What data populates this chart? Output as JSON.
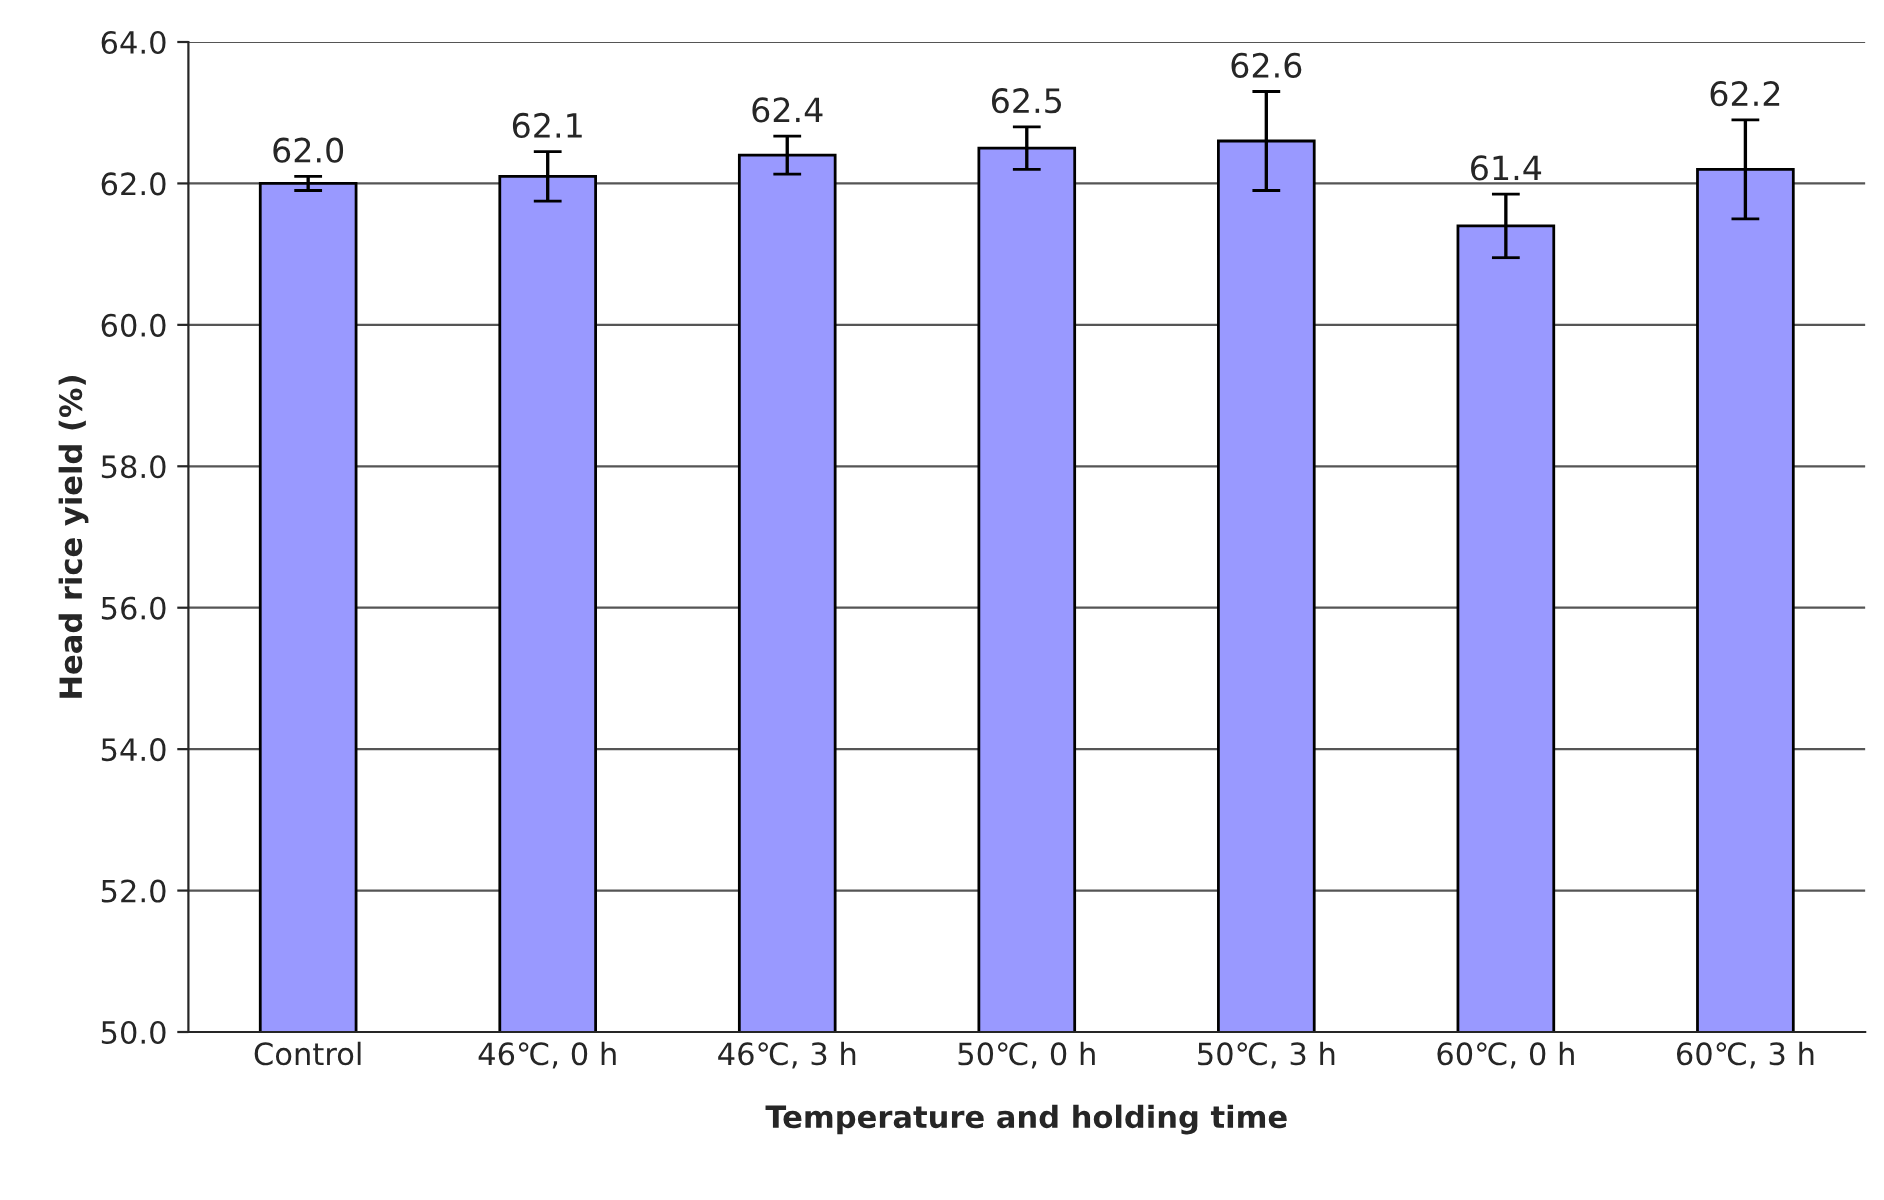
{
  "chart_data": {
    "type": "bar",
    "xlabel": "Temperature and holding time",
    "ylabel": "Head rice yield (%)",
    "categories": [
      "Control",
      "46℃, 0 h",
      "46℃, 3 h",
      "50℃, 0 h",
      "50℃, 3 h",
      "60℃, 0 h",
      "60℃, 3 h"
    ],
    "values": [
      62.0,
      62.1,
      62.4,
      62.5,
      62.6,
      61.4,
      62.2
    ],
    "errors": [
      0.1,
      0.35,
      0.27,
      0.3,
      0.7,
      0.45,
      0.7
    ],
    "color": "#9999ff",
    "ylim": [
      50,
      64
    ],
    "yticks": [
      {
        "value": 50,
        "label": "50.0"
      },
      {
        "value": 52,
        "label": "52.0"
      },
      {
        "value": 54,
        "label": "54.0"
      },
      {
        "value": 56,
        "label": "56.0"
      },
      {
        "value": 58,
        "label": "58.0"
      },
      {
        "value": 60,
        "label": "60.0"
      },
      {
        "value": 62,
        "label": "62.0"
      },
      {
        "value": 64,
        "label": "64.0"
      }
    ],
    "value_labels": [
      "62.0",
      "62.1",
      "62.4",
      "62.5",
      "62.6",
      "61.4",
      "62.2"
    ],
    "grid": "y"
  }
}
